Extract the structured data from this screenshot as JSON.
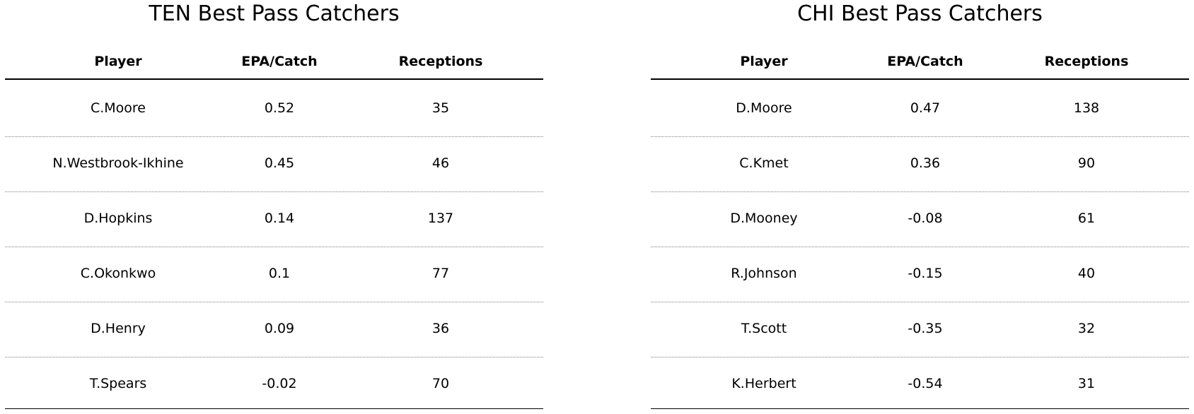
{
  "chart_data": [
    {
      "type": "table",
      "title": "TEN Best Pass Catchers",
      "columns": [
        "Player",
        "EPA/Catch",
        "Receptions"
      ],
      "rows": [
        [
          "C.Moore",
          "0.52",
          "35"
        ],
        [
          "N.Westbrook-Ikhine",
          "0.45",
          "46"
        ],
        [
          "D.Hopkins",
          "0.14",
          "137"
        ],
        [
          "C.Okonkwo",
          "0.1",
          "77"
        ],
        [
          "D.Henry",
          "0.09",
          "36"
        ],
        [
          "T.Spears",
          "-0.02",
          "70"
        ]
      ]
    },
    {
      "type": "table",
      "title": "CHI Best Pass Catchers",
      "columns": [
        "Player",
        "EPA/Catch",
        "Receptions"
      ],
      "rows": [
        [
          "D.Moore",
          "0.47",
          "138"
        ],
        [
          "C.Kmet",
          "0.36",
          "90"
        ],
        [
          "D.Mooney",
          "-0.08",
          "61"
        ],
        [
          "R.Johnson",
          "-0.15",
          "40"
        ],
        [
          "T.Scott",
          "-0.35",
          "32"
        ],
        [
          "K.Herbert",
          "-0.54",
          "31"
        ]
      ]
    }
  ]
}
